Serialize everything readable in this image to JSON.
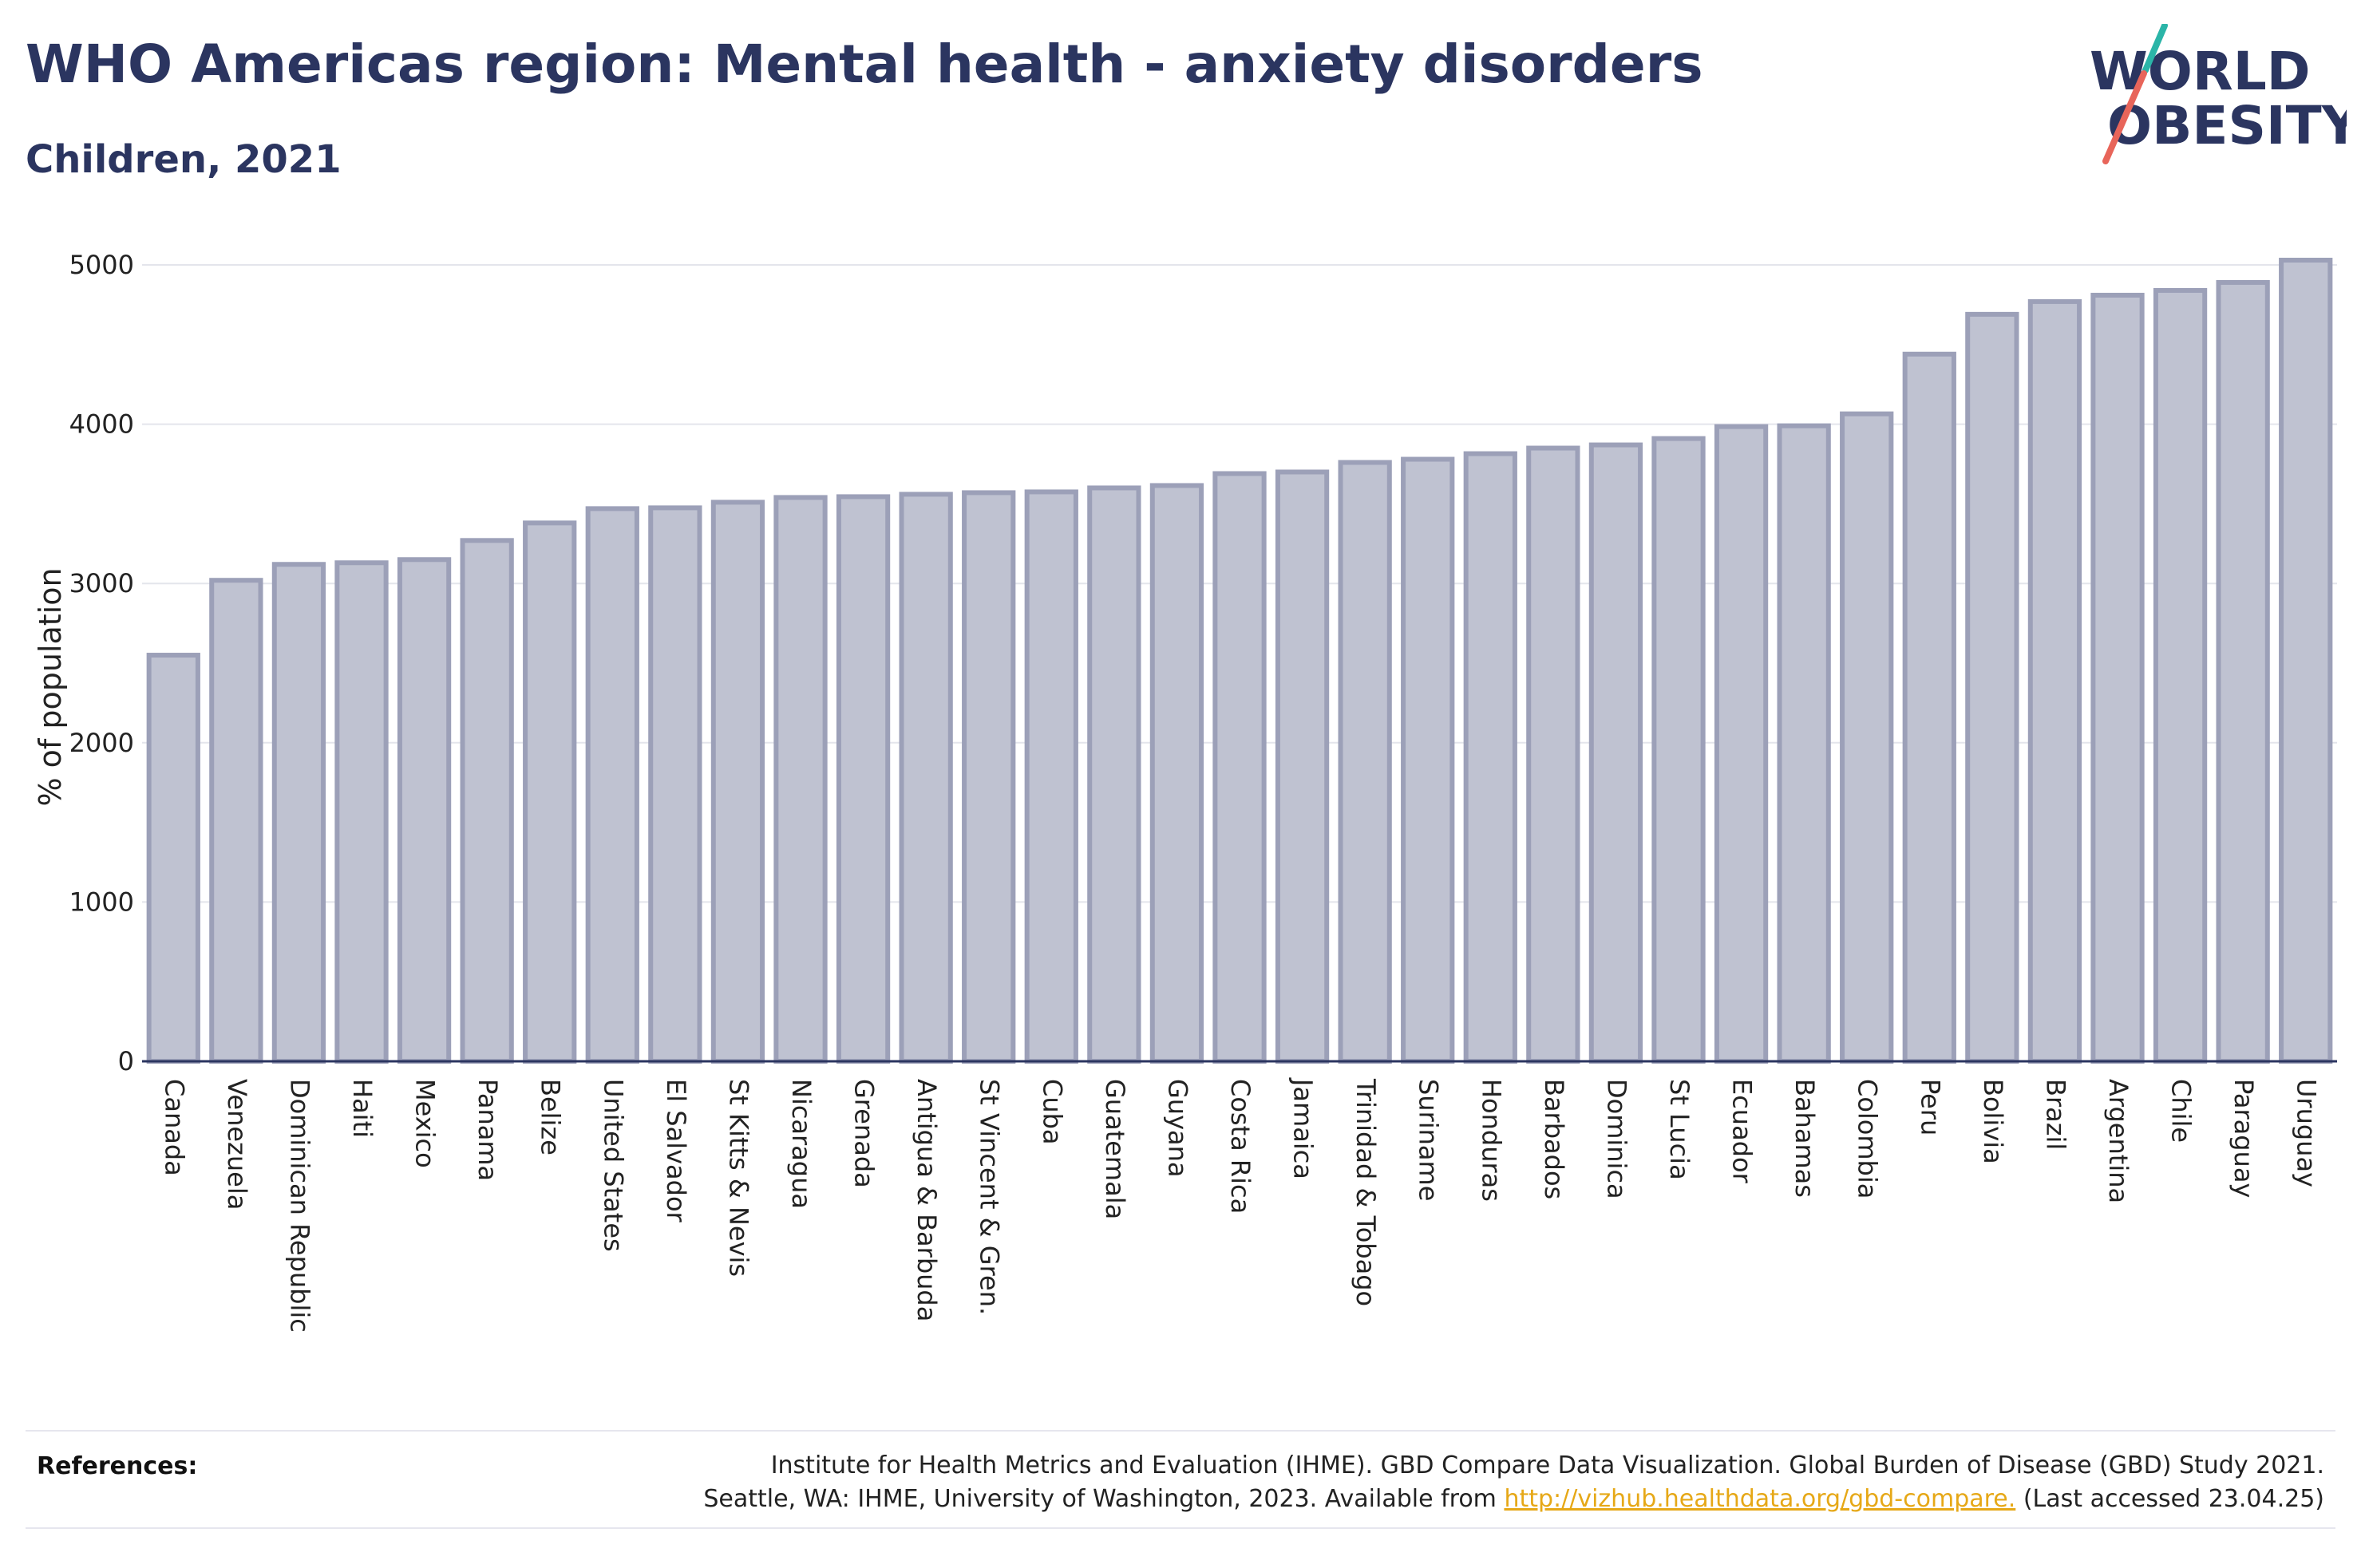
{
  "header": {
    "title": "WHO Americas region: Mental health - anxiety disorders",
    "subtitle": "Children, 2021"
  },
  "logo": {
    "line1": "WORLD",
    "line2": "OBESITY",
    "colors": {
      "text": "#2b3560",
      "slash_top": "#2bb5a8",
      "slash_bottom": "#e8655a"
    }
  },
  "chart_data": {
    "type": "bar",
    "ylabel": "% of population",
    "ylim": [
      0,
      5000
    ],
    "yticks": [
      0,
      1000,
      2000,
      3000,
      4000,
      5000
    ],
    "grid": true,
    "bar_fill": "#bfc2d1",
    "bar_stroke": "#9ca0b8",
    "categories": [
      "Canada",
      "Venezuela",
      "Dominican Republic",
      "Haiti",
      "Mexico",
      "Panama",
      "Belize",
      "United States",
      "El Salvador",
      "St Kitts & Nevis",
      "Nicaragua",
      "Grenada",
      "Antigua & Barbuda",
      "St Vincent & Gren.",
      "Cuba",
      "Guatemala",
      "Guyana",
      "Costa Rica",
      "Jamaica",
      "Trinidad & Tobago",
      "Suriname",
      "Honduras",
      "Barbados",
      "Dominica",
      "St Lucia",
      "Ecuador",
      "Bahamas",
      "Colombia",
      "Peru",
      "Bolivia",
      "Brazil",
      "Argentina",
      "Chile",
      "Paraguay",
      "Uruguay"
    ],
    "values": [
      2550,
      3020,
      3120,
      3130,
      3150,
      3270,
      3380,
      3470,
      3475,
      3510,
      3540,
      3545,
      3560,
      3570,
      3575,
      3600,
      3615,
      3690,
      3700,
      3760,
      3780,
      3815,
      3850,
      3870,
      3910,
      3985,
      3990,
      4065,
      4440,
      4690,
      4770,
      4810,
      4840,
      4890,
      5030
    ]
  },
  "references": {
    "label": "References:",
    "line1": "Institute for Health Metrics and Evaluation (IHME). GBD Compare Data Visualization. Global Burden of Disease (GBD) Study 2021.",
    "line2_prefix": "Seattle, WA: IHME, University of Washington, 2023. Available from ",
    "link": "http://vizhub.healthdata.org/gbd-compare.",
    "line2_suffix": " (Last accessed 23.04.25)"
  }
}
